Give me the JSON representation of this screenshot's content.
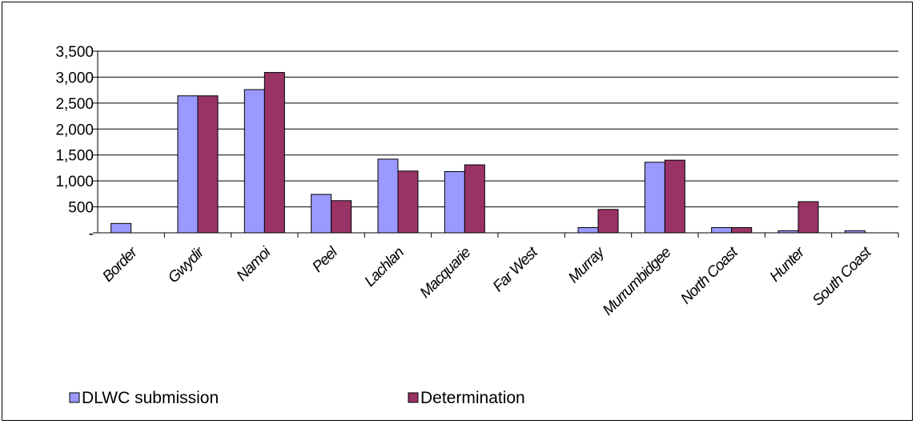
{
  "chart_data": {
    "type": "bar",
    "categories": [
      "Border",
      "Gwydir",
      "Namoi",
      "Peel",
      "Lachlan",
      "Macquarie",
      "Far West",
      "Murray",
      "Murrumbidgee",
      "North Coast",
      "Hunter",
      "South Coast"
    ],
    "series": [
      {
        "name": "DLWC submission",
        "values": [
          180,
          2640,
          2760,
          740,
          1420,
          1180,
          0,
          100,
          1360,
          100,
          40,
          40
        ],
        "color": "#9999ff"
      },
      {
        "name": "Determination",
        "values": [
          0,
          2640,
          3090,
          620,
          1190,
          1310,
          0,
          450,
          1400,
          100,
          600,
          0
        ],
        "color": "#993366"
      }
    ],
    "yticks": [
      0,
      500,
      1000,
      1500,
      2000,
      2500,
      3000,
      3500
    ],
    "ytick_labels": [
      "-",
      "500",
      "1,000",
      "1,500",
      "2,000",
      "2,500",
      "3,000",
      "3,500"
    ],
    "ylim": [
      0,
      3500
    ],
    "grid": true,
    "legend_position": "bottom-left",
    "title": "",
    "xlabel": "",
    "ylabel": ""
  }
}
